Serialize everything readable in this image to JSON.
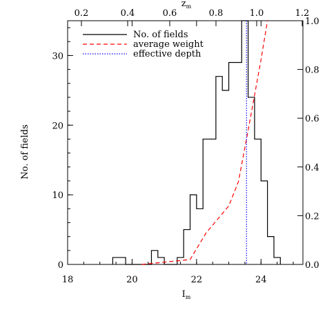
{
  "chart_data": {
    "type": "line",
    "xlabel": "I",
    "xlabel_sub": "m",
    "ylabel": "No. of fields",
    "top_xlabel": "z",
    "top_xlabel_sub": "m",
    "xlim": [
      18,
      25.3
    ],
    "ylim": [
      0,
      35
    ],
    "x_ticks": [
      18,
      20,
      22,
      24
    ],
    "y_ticks": [
      0,
      10,
      20,
      30
    ],
    "top_ticks": [
      0.2,
      0.4,
      0.6,
      0.8,
      1.0,
      1.2
    ],
    "top_tick_labels": [
      "0.2",
      "0.4",
      "0.6",
      "0.8",
      "1.0",
      "1.2"
    ],
    "right_ylim": [
      0,
      1.0
    ],
    "right_ticks": [
      0.0,
      0.2,
      0.4,
      0.6,
      0.8,
      1.0
    ],
    "right_tick_labels": [
      "0.0",
      "0.2",
      "0.4",
      "0.6",
      "0.8",
      "1.0"
    ],
    "legend_position": "top-left",
    "series": [
      {
        "name": "No. of fields",
        "style": "solid",
        "color": "#000000",
        "axis": "left",
        "bin_width": 0.2,
        "bins": [
          {
            "x": 19.5,
            "y": 1
          },
          {
            "x": 19.7,
            "y": 1
          },
          {
            "x": 19.9,
            "y": 0
          },
          {
            "x": 20.1,
            "y": 0
          },
          {
            "x": 20.3,
            "y": 0
          },
          {
            "x": 20.5,
            "y": 0
          },
          {
            "x": 20.7,
            "y": 2
          },
          {
            "x": 20.9,
            "y": 1
          },
          {
            "x": 21.1,
            "y": 0
          },
          {
            "x": 21.3,
            "y": 0
          },
          {
            "x": 21.5,
            "y": 1
          },
          {
            "x": 21.7,
            "y": 5
          },
          {
            "x": 21.9,
            "y": 10
          },
          {
            "x": 22.1,
            "y": 8
          },
          {
            "x": 22.3,
            "y": 18
          },
          {
            "x": 22.5,
            "y": 18
          },
          {
            "x": 22.7,
            "y": 27
          },
          {
            "x": 22.9,
            "y": 25
          },
          {
            "x": 23.1,
            "y": 29
          },
          {
            "x": 23.3,
            "y": 29
          },
          {
            "x": 23.5,
            "y": 36
          },
          {
            "x": 23.7,
            "y": 24
          },
          {
            "x": 23.9,
            "y": 18
          },
          {
            "x": 24.1,
            "y": 12
          },
          {
            "x": 24.3,
            "y": 4
          },
          {
            "x": 24.5,
            "y": 1
          }
        ]
      },
      {
        "name": "average weight",
        "style": "dashed",
        "color": "#ff0000",
        "axis": "right",
        "points": [
          {
            "x": 20.3,
            "y": 0.0
          },
          {
            "x": 21.8,
            "y": 0.02
          },
          {
            "x": 22.3,
            "y": 0.13
          },
          {
            "x": 23.0,
            "y": 0.24
          },
          {
            "x": 23.3,
            "y": 0.34
          },
          {
            "x": 23.6,
            "y": 0.55
          },
          {
            "x": 24.0,
            "y": 0.84
          },
          {
            "x": 24.2,
            "y": 1.0
          }
        ]
      },
      {
        "name": "effective depth",
        "style": "dotted",
        "color": "#0000ff",
        "axis": "left",
        "vertical_x": 23.55
      }
    ]
  }
}
